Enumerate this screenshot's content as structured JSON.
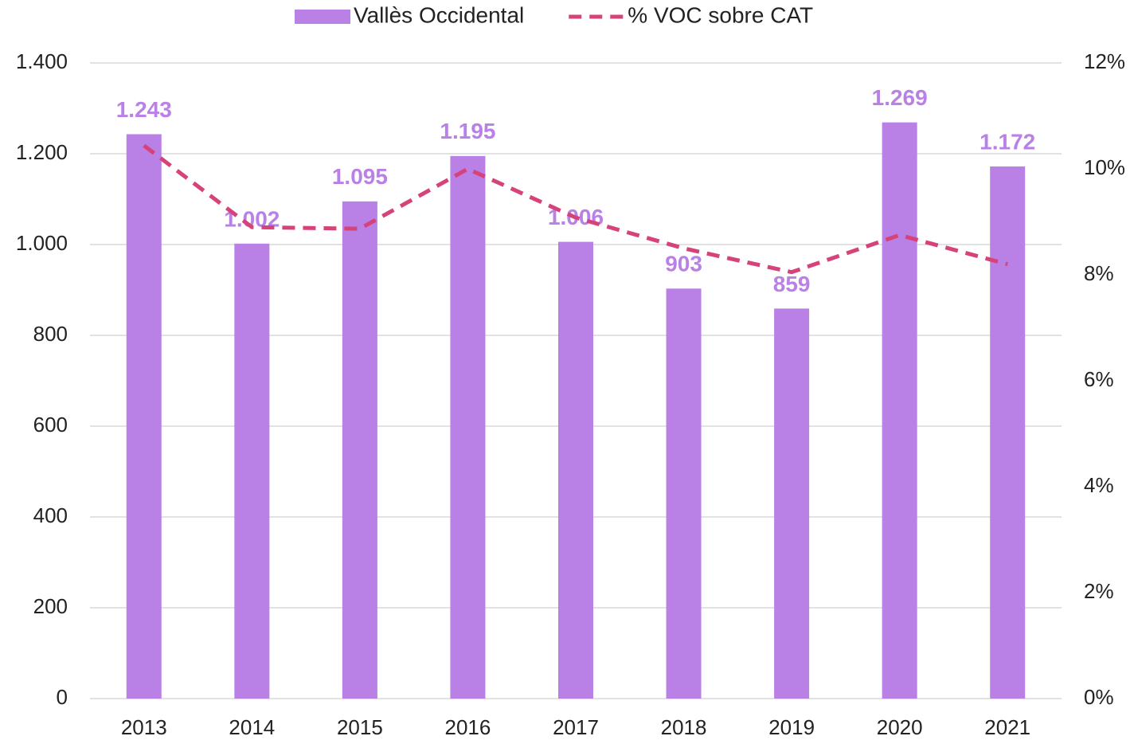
{
  "chart_data": {
    "type": "bar",
    "categories": [
      "2013",
      "2014",
      "2015",
      "2016",
      "2017",
      "2018",
      "2019",
      "2020",
      "2021"
    ],
    "series": [
      {
        "name": "Vallès Occidental",
        "type": "bar",
        "color": "#b980e6",
        "values": [
          1243,
          1002,
          1095,
          1195,
          1006,
          903,
          859,
          1269,
          1172
        ],
        "value_labels": [
          "1.243",
          "1.002",
          "1.095",
          "1.195",
          "1.006",
          "903",
          "859",
          "1.269",
          "1.172"
        ]
      },
      {
        "name": "% VOC sobre CAT",
        "type": "line",
        "axis": "y2",
        "color": "#d6437a",
        "dashed": true,
        "values": [
          10.44,
          8.9,
          8.87,
          10.0,
          9.08,
          8.5,
          8.05,
          8.75,
          8.2
        ]
      }
    ],
    "ylim": [
      0,
      1400
    ],
    "yticks": [
      0,
      200,
      400,
      600,
      800,
      {
        "value": 1000,
        "label": "1.000"
      },
      {
        "value": 1200,
        "label": "1.200"
      },
      {
        "value": 1400,
        "label": "1.400"
      }
    ],
    "y2lim": [
      0,
      12
    ],
    "y2ticks": [
      {
        "value": 0,
        "label": "0%"
      },
      {
        "value": 2,
        "label": "2%"
      },
      {
        "value": 4,
        "label": "4%"
      },
      {
        "value": 6,
        "label": "6%"
      },
      {
        "value": 8,
        "label": "8%"
      },
      {
        "value": 10,
        "label": "10%"
      },
      {
        "value": 12,
        "label": "12%"
      }
    ],
    "grid": true,
    "legend": "top"
  }
}
